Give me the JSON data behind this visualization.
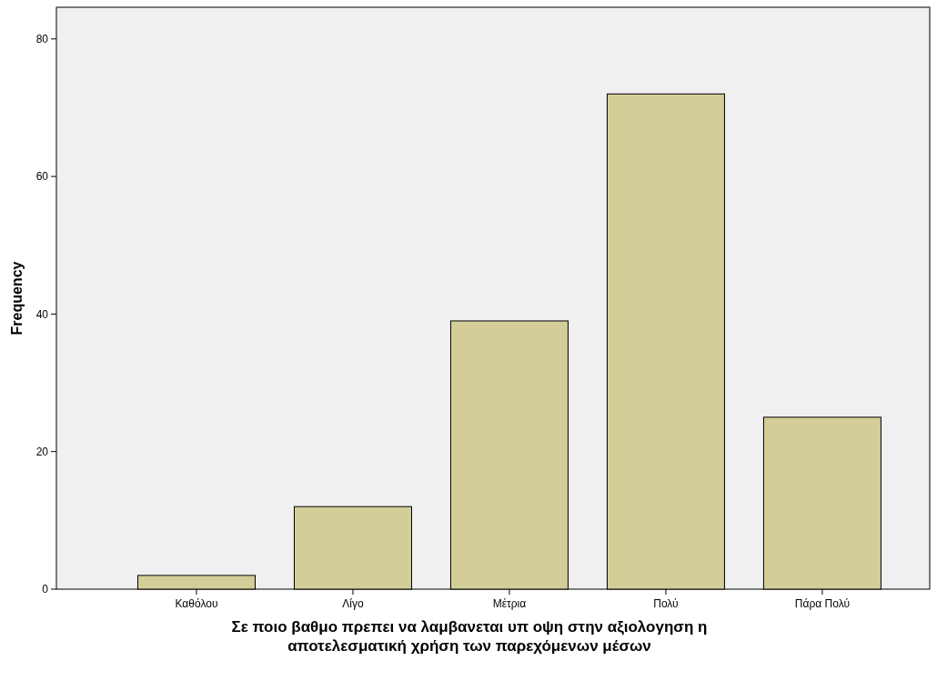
{
  "chart_data": {
    "type": "bar",
    "xlabel": "Σε ποιο βαθμο πρεπει να λαμβανεται υπ οψη στην αξιολογηση η αποτελεσματική χρήση των παρεχόμενων μέσων",
    "ylabel": "Frequency",
    "categories": [
      "Καθόλου",
      "Λίγο",
      "Μέτρια",
      "Πολύ",
      "Πάρα Πολύ"
    ],
    "values": [
      2,
      12,
      39,
      72,
      25
    ],
    "color": "#d3ce98",
    "ylim": [
      0,
      84.6
    ],
    "yticks": [
      0,
      20,
      40,
      60,
      80
    ],
    "grid": false
  }
}
